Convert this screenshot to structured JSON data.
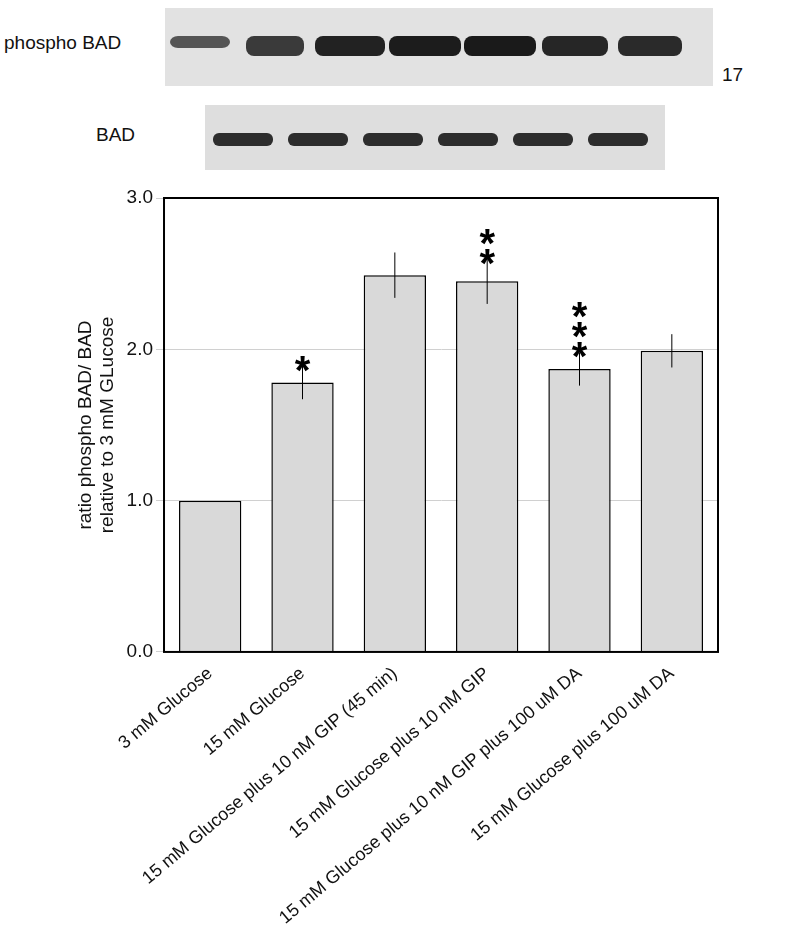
{
  "chart_data": {
    "type": "bar",
    "blot_labels": [
      "phospho BAD",
      "BAD"
    ],
    "blot_side_label": "17",
    "y_label": [
      "ratio phospho BAD/ BAD",
      "relative to 3 mM GLucose"
    ],
    "categories": [
      "3 mM Glucose",
      "15 mM Glucose",
      "15 mM Glucose plus 10 nM GIP (45 min)",
      "15 mM Glucose plus 10 nM GIP",
      "15 mM Glucose plus 10 nM GIP plus 100 uM DA",
      "15 mM Glucose plus 100 uM DA"
    ],
    "values": [
      1.0,
      1.78,
      2.49,
      2.45,
      1.87,
      1.99
    ],
    "errors": [
      0,
      0.11,
      0.15,
      0.15,
      0.11,
      0.11
    ],
    "annotations": [
      null,
      "*",
      null,
      "**",
      "***",
      null
    ],
    "color": "#d9d9d9",
    "ylim": [
      0,
      3
    ],
    "yticks": [
      {
        "value": 0,
        "label": "0.0"
      },
      {
        "value": 1,
        "label": "1.0"
      },
      {
        "value": 2,
        "label": "2.0"
      },
      {
        "value": 3,
        "label": "3.0"
      }
    ],
    "grid": true
  }
}
